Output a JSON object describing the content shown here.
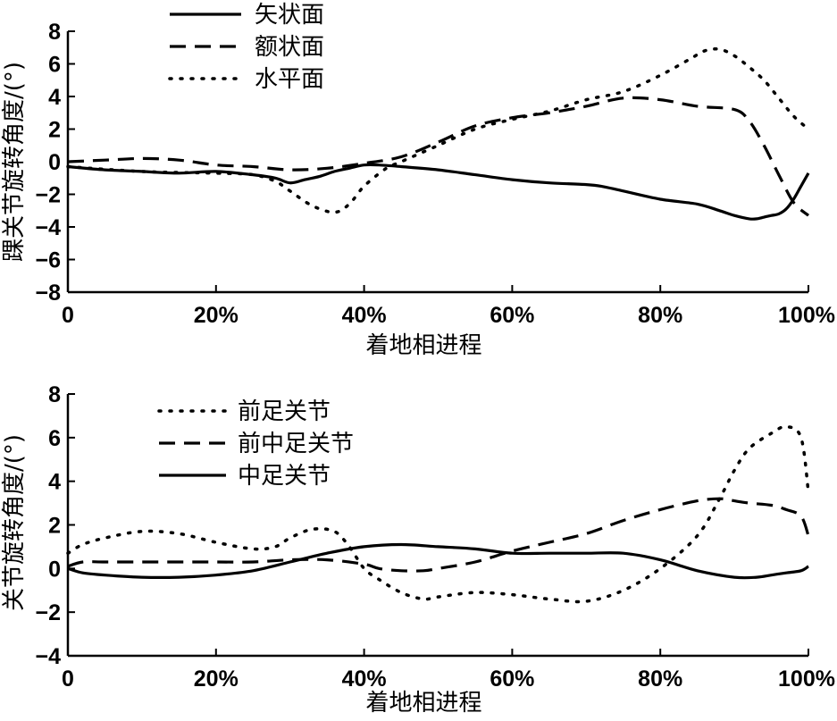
{
  "chart_data": [
    {
      "type": "line",
      "xlabel": "着地相进程",
      "ylabel": "踝关节旋转角度/(°)",
      "xlim": [
        0,
        100
      ],
      "ylim": [
        -8,
        8
      ],
      "x_ticks": [
        0,
        20,
        40,
        60,
        80,
        100
      ],
      "x_tick_labels": [
        "0",
        "20%",
        "40%",
        "60%",
        "80%",
        "100%"
      ],
      "y_ticks": [
        -8,
        -6,
        -4,
        -2,
        0,
        2,
        4,
        6,
        8
      ],
      "y_tick_labels": [
        "−8",
        "−6",
        "−4",
        "−2",
        "0",
        "2",
        "4",
        "6",
        "8"
      ],
      "grid": false,
      "legend_position": "top-left",
      "series": [
        {
          "name": "矢状面",
          "style": "solid",
          "color": "#000000",
          "x": [
            0,
            5,
            10,
            15,
            20,
            25,
            28,
            30,
            32,
            34,
            36,
            38,
            40,
            42,
            45,
            50,
            55,
            60,
            65,
            70,
            72,
            75,
            80,
            85,
            88,
            90,
            92,
            93,
            94,
            95,
            96,
            97,
            98,
            99,
            100
          ],
          "y": [
            -0.3,
            -0.5,
            -0.6,
            -0.7,
            -0.6,
            -0.8,
            -1.0,
            -1.3,
            -1.1,
            -0.9,
            -0.6,
            -0.4,
            -0.2,
            -0.2,
            -0.3,
            -0.5,
            -0.8,
            -1.1,
            -1.3,
            -1.4,
            -1.5,
            -1.8,
            -2.3,
            -2.6,
            -3.0,
            -3.3,
            -3.5,
            -3.5,
            -3.4,
            -3.3,
            -3.2,
            -2.9,
            -2.3,
            -1.5,
            -0.7
          ]
        },
        {
          "name": "额状面",
          "style": "dashed",
          "color": "#000000",
          "x": [
            0,
            5,
            10,
            15,
            20,
            25,
            30,
            35,
            40,
            45,
            50,
            55,
            60,
            65,
            70,
            75,
            80,
            85,
            90,
            92,
            94,
            96,
            98,
            100
          ],
          "y": [
            0.0,
            0.1,
            0.2,
            0.1,
            -0.2,
            -0.3,
            -0.5,
            -0.4,
            -0.1,
            0.3,
            1.2,
            2.2,
            2.7,
            3.0,
            3.4,
            3.9,
            3.8,
            3.4,
            3.2,
            2.5,
            1.0,
            -0.8,
            -2.5,
            -3.3
          ]
        },
        {
          "name": "水平面",
          "style": "dotted",
          "color": "#000000",
          "x": [
            0,
            10,
            20,
            25,
            28,
            30,
            33,
            36,
            38,
            40,
            43,
            45,
            50,
            55,
            60,
            65,
            70,
            75,
            80,
            84,
            86,
            88,
            90,
            92,
            94,
            96,
            98,
            100
          ],
          "y": [
            -0.3,
            -0.6,
            -0.7,
            -0.8,
            -1.2,
            -1.8,
            -2.7,
            -3.1,
            -2.6,
            -1.5,
            -0.4,
            0.0,
            1.0,
            2.0,
            2.6,
            3.1,
            3.8,
            4.3,
            5.3,
            6.3,
            6.8,
            6.9,
            6.5,
            5.8,
            5.0,
            3.9,
            2.8,
            2.0
          ]
        }
      ]
    },
    {
      "type": "line",
      "xlabel": "着地相进程",
      "ylabel": "关节旋转角度/(°)",
      "xlim": [
        0,
        100
      ],
      "ylim": [
        -4,
        8
      ],
      "x_ticks": [
        0,
        20,
        40,
        60,
        80,
        100
      ],
      "x_tick_labels": [
        "0",
        "20%",
        "40%",
        "60%",
        "80%",
        "100%"
      ],
      "y_ticks": [
        -4,
        -2,
        0,
        2,
        4,
        6,
        8
      ],
      "y_tick_labels": [
        "−4",
        "−2",
        "0",
        "2",
        "4",
        "6",
        "8"
      ],
      "grid": false,
      "legend_position": "top-left",
      "series": [
        {
          "name": "前足关节",
          "style": "dotted",
          "color": "#000000",
          "x": [
            0,
            2,
            5,
            10,
            15,
            20,
            25,
            28,
            30,
            33,
            36,
            38,
            40,
            42,
            45,
            48,
            50,
            55,
            60,
            65,
            70,
            75,
            80,
            85,
            88,
            90,
            92,
            95,
            97,
            99,
            100
          ],
          "y": [
            0.7,
            1.1,
            1.4,
            1.7,
            1.6,
            1.2,
            0.9,
            1.0,
            1.4,
            1.8,
            1.7,
            1.0,
            0.0,
            -0.5,
            -1.1,
            -1.4,
            -1.3,
            -1.1,
            -1.2,
            -1.4,
            -1.5,
            -1.0,
            0.0,
            1.5,
            3.2,
            4.5,
            5.5,
            6.2,
            6.5,
            6.0,
            3.5
          ]
        },
        {
          "name": "前中足关节",
          "style": "dashed",
          "color": "#000000",
          "x": [
            0,
            2,
            5,
            10,
            15,
            20,
            25,
            30,
            35,
            40,
            42,
            45,
            48,
            50,
            55,
            60,
            65,
            70,
            75,
            80,
            85,
            88,
            90,
            92,
            95,
            97,
            99,
            100
          ],
          "y": [
            0.1,
            0.3,
            0.3,
            0.3,
            0.3,
            0.3,
            0.3,
            0.4,
            0.4,
            0.2,
            0.0,
            -0.1,
            -0.1,
            0.0,
            0.3,
            0.8,
            1.2,
            1.6,
            2.2,
            2.7,
            3.1,
            3.2,
            3.1,
            3.0,
            2.9,
            2.7,
            2.4,
            1.5
          ]
        },
        {
          "name": "中足关节",
          "style": "solid",
          "color": "#000000",
          "x": [
            0,
            2,
            5,
            10,
            15,
            20,
            25,
            30,
            35,
            40,
            45,
            50,
            55,
            60,
            65,
            70,
            75,
            80,
            85,
            90,
            93,
            95,
            97,
            99,
            100
          ],
          "y": [
            0.0,
            -0.2,
            -0.3,
            -0.4,
            -0.4,
            -0.3,
            -0.1,
            0.3,
            0.7,
            1.0,
            1.1,
            1.0,
            0.9,
            0.7,
            0.7,
            0.7,
            0.7,
            0.4,
            -0.1,
            -0.4,
            -0.4,
            -0.3,
            -0.2,
            -0.1,
            0.1
          ]
        }
      ]
    }
  ]
}
